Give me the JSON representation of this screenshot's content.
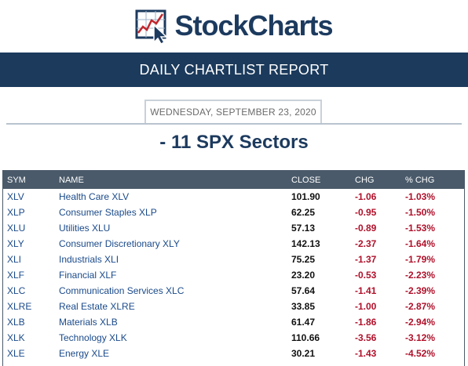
{
  "brand": {
    "name": "StockCharts",
    "logo_icon": "chart-cursor-icon",
    "colors": {
      "navy": "#1c3a5e",
      "red": "#c0272d"
    }
  },
  "banner": {
    "title": "DAILY CHARTLIST REPORT"
  },
  "report": {
    "date": "WEDNESDAY, SEPTEMBER 23, 2020",
    "list_title": "- 11 SPX Sectors"
  },
  "table": {
    "headers": {
      "sym": "SYM",
      "name": "NAME",
      "close": "CLOSE",
      "chg": "CHG",
      "pct_chg": "% CHG"
    },
    "rows": [
      {
        "sym": "XLV",
        "name": "Health Care XLV",
        "close": "101.90",
        "chg": "-1.06",
        "pct_chg": "-1.03%"
      },
      {
        "sym": "XLP",
        "name": "Consumer Staples XLP",
        "close": "62.25",
        "chg": "-0.95",
        "pct_chg": "-1.50%"
      },
      {
        "sym": "XLU",
        "name": "Utilities XLU",
        "close": "57.13",
        "chg": "-0.89",
        "pct_chg": "-1.53%"
      },
      {
        "sym": "XLY",
        "name": "Consumer Discretionary XLY",
        "close": "142.13",
        "chg": "-2.37",
        "pct_chg": "-1.64%"
      },
      {
        "sym": "XLI",
        "name": "Industrials XLI",
        "close": "75.25",
        "chg": "-1.37",
        "pct_chg": "-1.79%"
      },
      {
        "sym": "XLF",
        "name": "Financial XLF",
        "close": "23.20",
        "chg": "-0.53",
        "pct_chg": "-2.23%"
      },
      {
        "sym": "XLC",
        "name": "Communication Services XLC",
        "close": "57.64",
        "chg": "-1.41",
        "pct_chg": "-2.39%"
      },
      {
        "sym": "XLRE",
        "name": "Real Estate XLRE",
        "close": "33.85",
        "chg": "-1.00",
        "pct_chg": "-2.87%"
      },
      {
        "sym": "XLB",
        "name": "Materials XLB",
        "close": "61.47",
        "chg": "-1.86",
        "pct_chg": "-2.94%"
      },
      {
        "sym": "XLK",
        "name": "Technology XLK",
        "close": "110.66",
        "chg": "-3.56",
        "pct_chg": "-3.12%"
      },
      {
        "sym": "XLE",
        "name": "Energy XLE",
        "close": "30.21",
        "chg": "-1.43",
        "pct_chg": "-4.52%"
      }
    ]
  }
}
